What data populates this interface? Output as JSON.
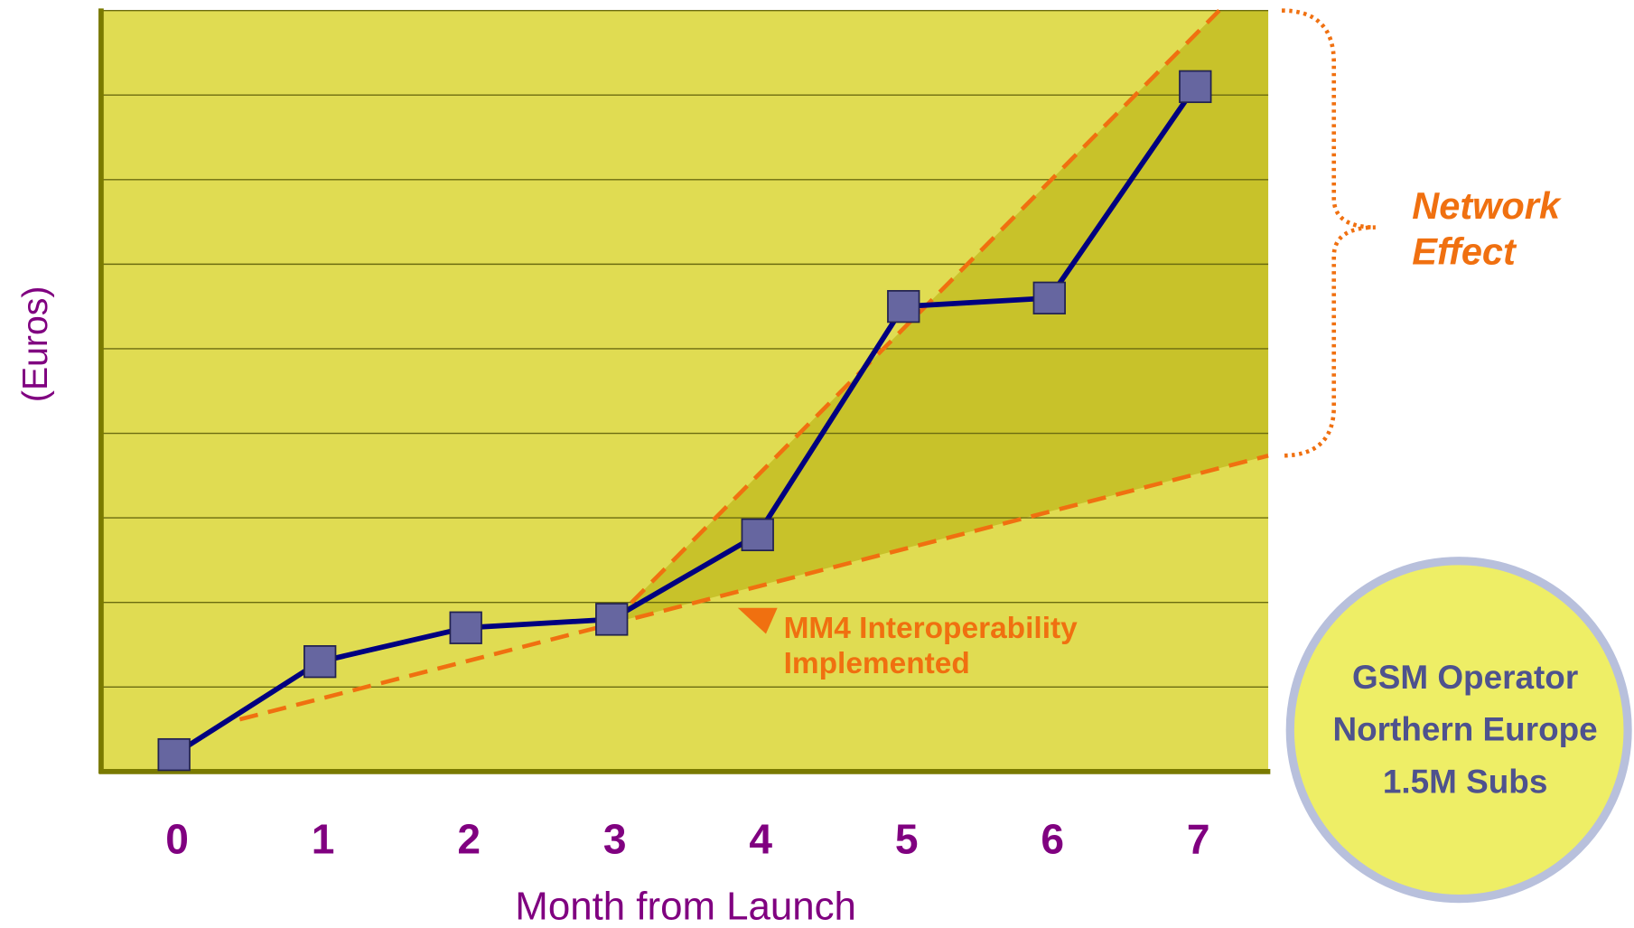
{
  "chart_data": {
    "type": "line",
    "y_label": "(Euros)",
    "x_label": "Month from Launch",
    "categories": [
      "0",
      "1",
      "2",
      "3",
      "4",
      "5",
      "6",
      "7"
    ],
    "values": [
      0.2,
      1.3,
      1.7,
      1.8,
      2.8,
      5.5,
      5.6,
      8.1
    ],
    "color": "#000080",
    "marker_color": "#6666a0",
    "ylim": [
      0,
      9
    ],
    "yticks": [
      0,
      1,
      2,
      3,
      4,
      5,
      6,
      7,
      8,
      9
    ],
    "grid": true,
    "annotation": [
      "MM4 Interoperability",
      "Implemented"
    ],
    "bracket_label": [
      "Network",
      "Effect"
    ],
    "badge": [
      "GSM Operator",
      "Northern Europe",
      "1.5M Subs"
    ]
  }
}
